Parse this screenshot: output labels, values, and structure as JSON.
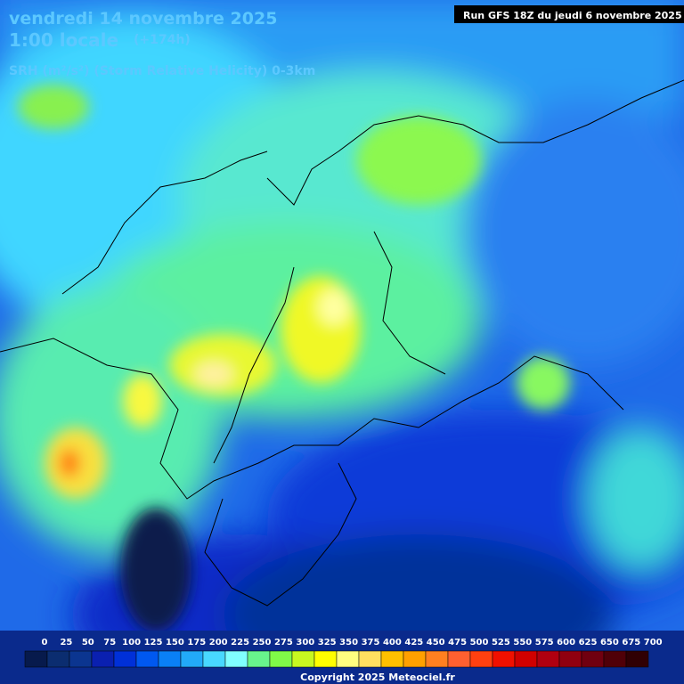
{
  "header": {
    "date": "vendredi 14 novembre 2025",
    "time": "1:00 locale",
    "lead": "(+174h)",
    "run": "Run GFS 18Z du jeudi 6 novembre 2025",
    "parameter": "SRH (m²/s²) (Storm Relative Helicity) 0-3km"
  },
  "legend": {
    "labels": [
      0,
      25,
      50,
      75,
      100,
      125,
      150,
      175,
      200,
      225,
      250,
      275,
      300,
      325,
      350,
      375,
      400,
      425,
      450,
      475,
      500,
      525,
      550,
      575,
      600,
      625,
      650,
      675,
      700
    ],
    "colors": [
      "#071a4c",
      "#0b2d70",
      "#0b3590",
      "#0a20b0",
      "#0030d8",
      "#0058f0",
      "#0a80f6",
      "#22aaf8",
      "#48d8ff",
      "#80ffff",
      "#68f48c",
      "#80fa48",
      "#c8f820",
      "#ffff00",
      "#ffff80",
      "#ffe060",
      "#ffc000",
      "#ffa000",
      "#ff8020",
      "#ff6030",
      "#ff4010",
      "#f01000",
      "#d00000",
      "#b00010",
      "#900010",
      "#700010",
      "#500008",
      "#300004"
    ]
  },
  "footer": {
    "copyright": "Copyright 2025 Meteociel.fr"
  }
}
